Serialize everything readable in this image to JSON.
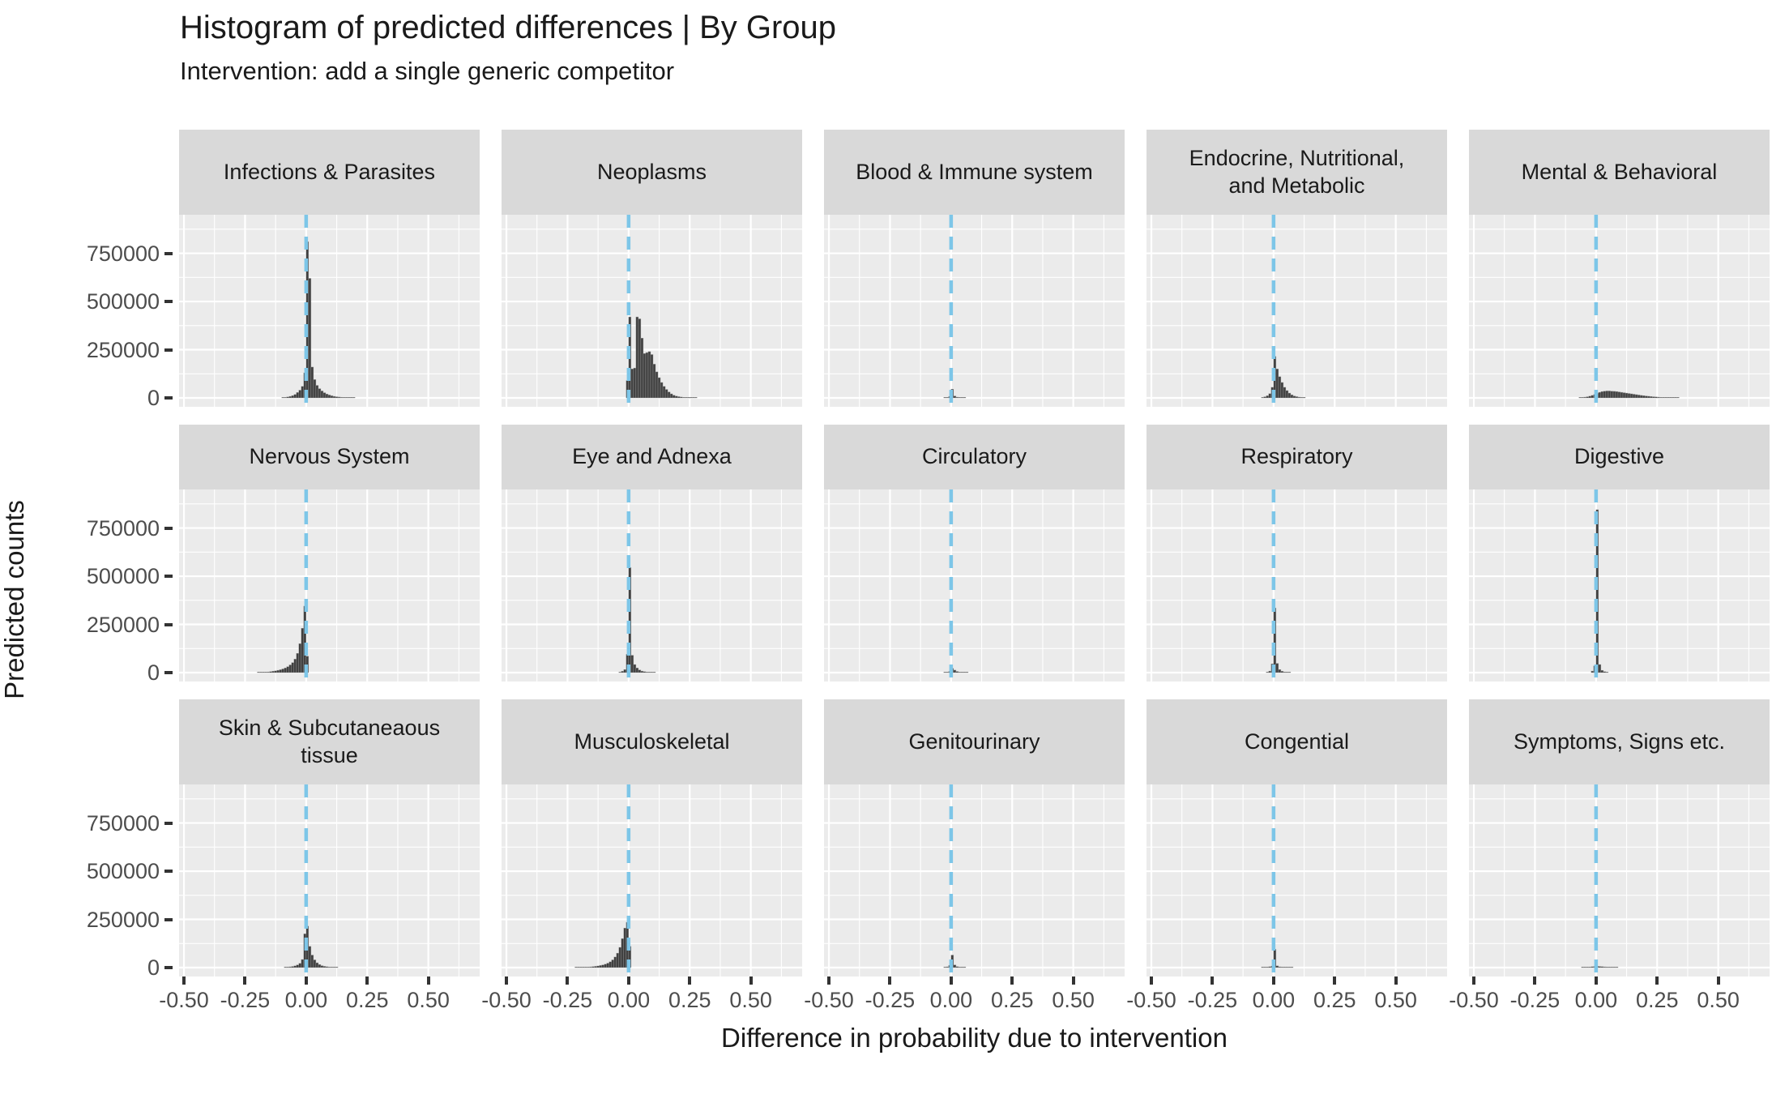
{
  "chart_data": {
    "type": "bar",
    "variant": "faceted-histogram",
    "title": "Histogram of predicted differences | By Group",
    "subtitle": "Intervention: add a single generic competitor",
    "xlabel": "Difference in probability due to intervention",
    "ylabel": "Predicted counts",
    "x_ticks": [
      -0.5,
      -0.25,
      0,
      0.25,
      0.5
    ],
    "x_tick_labels": [
      "-0.50",
      "-0.25",
      "0.00",
      "0.25",
      "0.50"
    ],
    "x_minor_ticks": [
      -0.375,
      -0.125,
      0.125,
      0.375,
      0.625
    ],
    "y_ticks": [
      0,
      250000,
      500000,
      750000
    ],
    "y_tick_labels": [
      "0",
      "250000",
      "500000",
      "750000"
    ],
    "y_minor_ticks": [
      125000,
      375000,
      625000,
      875000
    ],
    "x_domain": [
      -0.52,
      0.71
    ],
    "y_domain": [
      0,
      950000
    ],
    "bin_width": 0.01,
    "grid": "major-minor-white",
    "legend_position": "none",
    "reference_line": {
      "x": 0,
      "color": "#7DC6E8",
      "linetype": "dashed"
    },
    "colors": {
      "bar": "#404040",
      "bar_edge": "#9A9A9A",
      "panel_bg": "#EBEBEB",
      "strip_bg": "#D9D9D9",
      "grid": "#FFFFFF",
      "text": "#1A1A1A",
      "axis_text": "#4D4D4D",
      "tick": "#333333"
    },
    "facet_rows": 3,
    "facet_cols": 5,
    "facets": [
      {
        "label": "Infections & Parasites",
        "bins": [
          [
            -0.1,
            2000
          ],
          [
            -0.09,
            3000
          ],
          [
            -0.08,
            5000
          ],
          [
            -0.07,
            8000
          ],
          [
            -0.06,
            12000
          ],
          [
            -0.05,
            18000
          ],
          [
            -0.04,
            28000
          ],
          [
            -0.03,
            40000
          ],
          [
            -0.02,
            60000
          ],
          [
            -0.01,
            130000
          ],
          [
            0.0,
            810000
          ],
          [
            0.01,
            620000
          ],
          [
            0.02,
            160000
          ],
          [
            0.03,
            95000
          ],
          [
            0.04,
            65000
          ],
          [
            0.05,
            48000
          ],
          [
            0.06,
            36000
          ],
          [
            0.07,
            27000
          ],
          [
            0.08,
            20000
          ],
          [
            0.09,
            15000
          ],
          [
            0.1,
            11000
          ],
          [
            0.11,
            8000
          ],
          [
            0.12,
            6000
          ],
          [
            0.13,
            4500
          ],
          [
            0.14,
            3500
          ],
          [
            0.15,
            2500
          ],
          [
            0.16,
            1800
          ],
          [
            0.17,
            1300
          ],
          [
            0.18,
            900
          ],
          [
            0.19,
            600
          ]
        ]
      },
      {
        "label": "Neoplasms",
        "bins": [
          [
            -0.01,
            90000
          ],
          [
            0.0,
            420000
          ],
          [
            0.01,
            150000
          ],
          [
            0.02,
            155000
          ],
          [
            0.03,
            420000
          ],
          [
            0.04,
            410000
          ],
          [
            0.05,
            310000
          ],
          [
            0.06,
            230000
          ],
          [
            0.07,
            235000
          ],
          [
            0.08,
            240000
          ],
          [
            0.09,
            225000
          ],
          [
            0.1,
            175000
          ],
          [
            0.11,
            135000
          ],
          [
            0.12,
            105000
          ],
          [
            0.13,
            80000
          ],
          [
            0.14,
            60000
          ],
          [
            0.15,
            44000
          ],
          [
            0.16,
            31000
          ],
          [
            0.17,
            21000
          ],
          [
            0.18,
            14000
          ],
          [
            0.19,
            9500
          ],
          [
            0.2,
            6500
          ],
          [
            0.21,
            4500
          ],
          [
            0.22,
            3000
          ],
          [
            0.23,
            2000
          ],
          [
            0.24,
            1400
          ],
          [
            0.25,
            900
          ],
          [
            0.26,
            600
          ],
          [
            0.27,
            400
          ]
        ]
      },
      {
        "label": "Blood & Immune system",
        "bins": [
          [
            -0.03,
            1500
          ],
          [
            -0.02,
            3000
          ],
          [
            -0.01,
            8000
          ],
          [
            0.0,
            45000
          ],
          [
            0.01,
            10000
          ],
          [
            0.02,
            4000
          ],
          [
            0.03,
            2000
          ],
          [
            0.04,
            1200
          ],
          [
            0.05,
            800
          ]
        ]
      },
      {
        "label": "Endocrine, Nutritional,\nand Metabolic",
        "bins": [
          [
            -0.05,
            3000
          ],
          [
            -0.04,
            6000
          ],
          [
            -0.03,
            11000
          ],
          [
            -0.02,
            22000
          ],
          [
            -0.01,
            55000
          ],
          [
            0.0,
            215000
          ],
          [
            0.01,
            150000
          ],
          [
            0.02,
            110000
          ],
          [
            0.03,
            80000
          ],
          [
            0.04,
            55000
          ],
          [
            0.05,
            38000
          ],
          [
            0.06,
            25000
          ],
          [
            0.07,
            16000
          ],
          [
            0.08,
            10000
          ],
          [
            0.09,
            6500
          ],
          [
            0.1,
            4000
          ],
          [
            0.11,
            2500
          ],
          [
            0.12,
            1500
          ]
        ]
      },
      {
        "label": "Mental & Behavioral",
        "bins": [
          [
            -0.07,
            1500
          ],
          [
            -0.06,
            2500
          ],
          [
            -0.05,
            4000
          ],
          [
            -0.04,
            6000
          ],
          [
            -0.03,
            9000
          ],
          [
            -0.02,
            13000
          ],
          [
            -0.01,
            18000
          ],
          [
            0.0,
            24000
          ],
          [
            0.01,
            29000
          ],
          [
            0.02,
            33000
          ],
          [
            0.03,
            35000
          ],
          [
            0.04,
            36000
          ],
          [
            0.05,
            36000
          ],
          [
            0.06,
            35000
          ],
          [
            0.07,
            34000
          ],
          [
            0.08,
            33000
          ],
          [
            0.09,
            31000
          ],
          [
            0.1,
            29000
          ],
          [
            0.11,
            27000
          ],
          [
            0.12,
            25000
          ],
          [
            0.13,
            23000
          ],
          [
            0.14,
            21000
          ],
          [
            0.15,
            19000
          ],
          [
            0.16,
            17000
          ],
          [
            0.17,
            15000
          ],
          [
            0.18,
            13000
          ],
          [
            0.19,
            11500
          ],
          [
            0.2,
            10000
          ],
          [
            0.21,
            8500
          ],
          [
            0.22,
            7000
          ],
          [
            0.23,
            6000
          ],
          [
            0.24,
            5000
          ],
          [
            0.25,
            4000
          ],
          [
            0.26,
            3200
          ],
          [
            0.27,
            2500
          ],
          [
            0.28,
            2000
          ],
          [
            0.29,
            1500
          ],
          [
            0.3,
            1200
          ],
          [
            0.31,
            900
          ],
          [
            0.32,
            700
          ],
          [
            0.33,
            500
          ]
        ]
      },
      {
        "label": "Nervous System",
        "bins": [
          [
            -0.2,
            800
          ],
          [
            -0.19,
            1200
          ],
          [
            -0.18,
            1800
          ],
          [
            -0.17,
            2500
          ],
          [
            -0.16,
            3500
          ],
          [
            -0.15,
            5000
          ],
          [
            -0.14,
            7000
          ],
          [
            -0.13,
            9000
          ],
          [
            -0.12,
            12000
          ],
          [
            -0.11,
            15000
          ],
          [
            -0.1,
            19000
          ],
          [
            -0.09,
            24000
          ],
          [
            -0.08,
            31000
          ],
          [
            -0.07,
            40000
          ],
          [
            -0.06,
            52000
          ],
          [
            -0.05,
            70000
          ],
          [
            -0.04,
            100000
          ],
          [
            -0.03,
            150000
          ],
          [
            -0.02,
            230000
          ],
          [
            -0.01,
            345000
          ],
          [
            0.0,
            85000
          ]
        ]
      },
      {
        "label": "Eye and Adnexa",
        "bins": [
          [
            -0.04,
            3000
          ],
          [
            -0.03,
            7000
          ],
          [
            -0.02,
            16000
          ],
          [
            -0.01,
            95000
          ],
          [
            0.0,
            545000
          ],
          [
            0.01,
            90000
          ],
          [
            0.02,
            42000
          ],
          [
            0.03,
            24000
          ],
          [
            0.04,
            14000
          ],
          [
            0.05,
            8000
          ],
          [
            0.06,
            5000
          ],
          [
            0.07,
            3000
          ],
          [
            0.08,
            2000
          ],
          [
            0.09,
            1300
          ],
          [
            0.1,
            900
          ]
        ]
      },
      {
        "label": "Circulatory",
        "bins": [
          [
            -0.03,
            1200
          ],
          [
            -0.02,
            3000
          ],
          [
            -0.01,
            6000
          ],
          [
            0.0,
            22000
          ],
          [
            0.01,
            13000
          ],
          [
            0.02,
            6000
          ],
          [
            0.03,
            3000
          ],
          [
            0.04,
            1800
          ],
          [
            0.05,
            1000
          ],
          [
            0.06,
            600
          ]
        ]
      },
      {
        "label": "Respiratory",
        "bins": [
          [
            -0.03,
            3000
          ],
          [
            -0.02,
            8000
          ],
          [
            -0.01,
            45000
          ],
          [
            0.0,
            335000
          ],
          [
            0.01,
            48000
          ],
          [
            0.02,
            16000
          ],
          [
            0.03,
            7000
          ],
          [
            0.04,
            3500
          ],
          [
            0.05,
            1800
          ],
          [
            0.06,
            1000
          ]
        ]
      },
      {
        "label": "Digestive",
        "bins": [
          [
            -0.02,
            8000
          ],
          [
            -0.01,
            35000
          ],
          [
            0.0,
            845000
          ],
          [
            0.01,
            42000
          ],
          [
            0.02,
            12000
          ],
          [
            0.03,
            5000
          ],
          [
            0.04,
            2500
          ]
        ]
      },
      {
        "label": "Skin & Subcutaneaous\ntissue",
        "bins": [
          [
            -0.09,
            1500
          ],
          [
            -0.08,
            2500
          ],
          [
            -0.07,
            4000
          ],
          [
            -0.06,
            6000
          ],
          [
            -0.05,
            9000
          ],
          [
            -0.04,
            14000
          ],
          [
            -0.03,
            22000
          ],
          [
            -0.02,
            42000
          ],
          [
            -0.01,
            175000
          ],
          [
            0.0,
            215000
          ],
          [
            0.01,
            110000
          ],
          [
            0.02,
            65000
          ],
          [
            0.03,
            40000
          ],
          [
            0.04,
            25000
          ],
          [
            0.05,
            16000
          ],
          [
            0.06,
            10000
          ],
          [
            0.07,
            6500
          ],
          [
            0.08,
            4500
          ],
          [
            0.09,
            3000
          ],
          [
            0.1,
            2000
          ],
          [
            0.11,
            1400
          ],
          [
            0.12,
            1000
          ]
        ]
      },
      {
        "label": "Musculoskeletal",
        "bins": [
          [
            -0.22,
            500
          ],
          [
            -0.21,
            700
          ],
          [
            -0.2,
            1000
          ],
          [
            -0.19,
            1400
          ],
          [
            -0.18,
            2000
          ],
          [
            -0.17,
            2800
          ],
          [
            -0.16,
            3800
          ],
          [
            -0.15,
            5000
          ],
          [
            -0.14,
            6500
          ],
          [
            -0.13,
            8500
          ],
          [
            -0.12,
            11000
          ],
          [
            -0.11,
            14000
          ],
          [
            -0.1,
            18000
          ],
          [
            -0.09,
            23000
          ],
          [
            -0.08,
            30000
          ],
          [
            -0.07,
            40000
          ],
          [
            -0.06,
            55000
          ],
          [
            -0.05,
            75000
          ],
          [
            -0.04,
            105000
          ],
          [
            -0.03,
            150000
          ],
          [
            -0.02,
            205000
          ],
          [
            -0.01,
            235000
          ],
          [
            0.0,
            110000
          ]
        ]
      },
      {
        "label": "Genitourinary",
        "bins": [
          [
            -0.03,
            1500
          ],
          [
            -0.02,
            4000
          ],
          [
            -0.01,
            12000
          ],
          [
            0.0,
            65000
          ],
          [
            0.01,
            14000
          ],
          [
            0.02,
            5000
          ],
          [
            0.03,
            2500
          ],
          [
            0.04,
            1500
          ],
          [
            0.05,
            900
          ]
        ]
      },
      {
        "label": "Congential",
        "bins": [
          [
            -0.05,
            800
          ],
          [
            -0.04,
            1500
          ],
          [
            -0.03,
            2500
          ],
          [
            -0.02,
            4500
          ],
          [
            -0.01,
            8000
          ],
          [
            0.0,
            95000
          ],
          [
            0.01,
            9000
          ],
          [
            0.02,
            4000
          ],
          [
            0.03,
            2200
          ],
          [
            0.04,
            1400
          ],
          [
            0.05,
            900
          ],
          [
            0.06,
            600
          ],
          [
            0.07,
            400
          ]
        ]
      },
      {
        "label": "Symptoms, Signs etc.",
        "bins": [
          [
            -0.06,
            1000
          ],
          [
            -0.05,
            1500
          ],
          [
            -0.04,
            2200
          ],
          [
            -0.03,
            3200
          ],
          [
            -0.02,
            4500
          ],
          [
            -0.01,
            6000
          ],
          [
            0.0,
            7000
          ],
          [
            0.01,
            6000
          ],
          [
            0.02,
            4800
          ],
          [
            0.03,
            3800
          ],
          [
            0.04,
            3000
          ],
          [
            0.05,
            2300
          ],
          [
            0.06,
            1800
          ],
          [
            0.07,
            1400
          ],
          [
            0.08,
            1000
          ]
        ]
      }
    ]
  }
}
